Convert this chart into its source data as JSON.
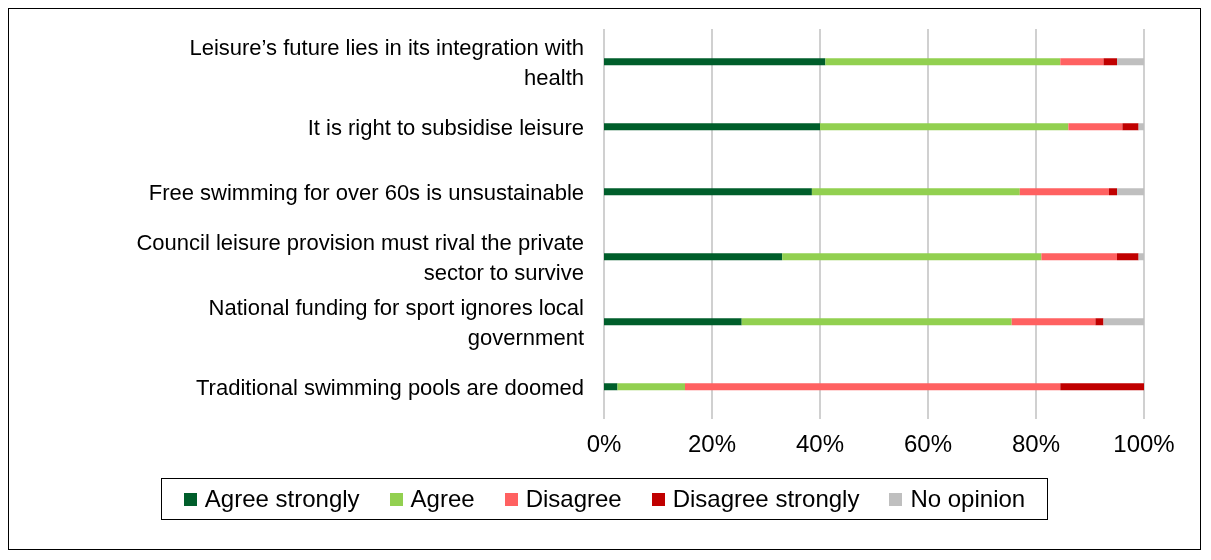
{
  "chart_data": {
    "type": "bar",
    "orientation": "horizontal",
    "stacked": true,
    "categories": [
      "Leisure’s future lies in its integration with health",
      "It is right to subsidise leisure",
      "Free swimming for over 60s is unsustainable",
      "Council leisure provision must rival the private sector to survive",
      "National funding for sport ignores local government",
      "Traditional swimming pools are doomed"
    ],
    "series": [
      {
        "name": "Agree strongly",
        "color": "#005e2b",
        "values": [
          41,
          40,
          38.5,
          33,
          25.5,
          2.5
        ]
      },
      {
        "name": "Agree",
        "color": "#92d050",
        "values": [
          43.5,
          46,
          38.5,
          48,
          50,
          12.5
        ]
      },
      {
        "name": "Disagree",
        "color": "#ff6161",
        "values": [
          8,
          10,
          16.5,
          14,
          15.5,
          69.5
        ]
      },
      {
        "name": "Disagree strongly",
        "color": "#c00000",
        "values": [
          2.5,
          3,
          1.5,
          4,
          1.5,
          15.5
        ]
      },
      {
        "name": "No opinion",
        "color": "#bfbfbf",
        "values": [
          5,
          1,
          5,
          1,
          7.5,
          0
        ]
      }
    ],
    "xlim": [
      0,
      100
    ],
    "xticks": [
      {
        "value": 0,
        "label": "0%"
      },
      {
        "value": 20,
        "label": "20%"
      },
      {
        "value": 40,
        "label": "40%"
      },
      {
        "value": 60,
        "label": "60%"
      },
      {
        "value": 80,
        "label": "80%"
      },
      {
        "value": 100,
        "label": "100%"
      }
    ],
    "grid": "x",
    "legend": "bottom"
  }
}
